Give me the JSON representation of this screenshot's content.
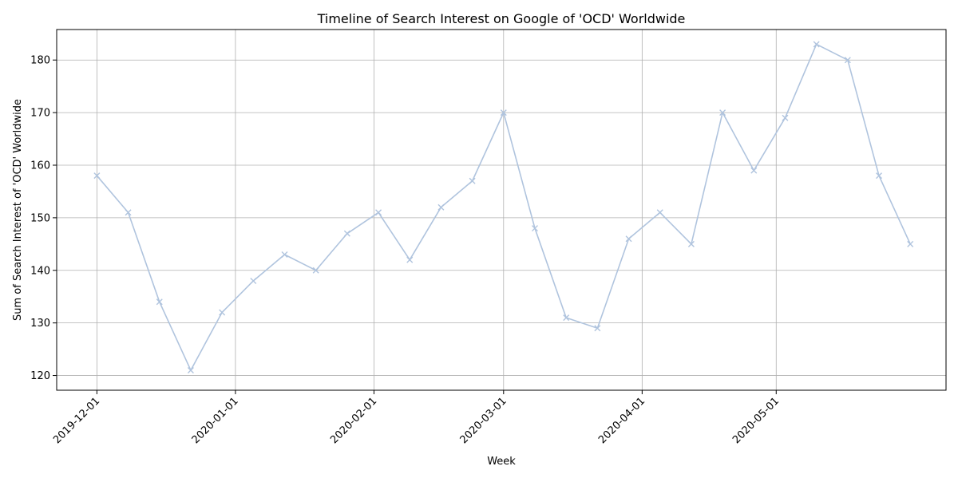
{
  "chart_data": {
    "type": "line",
    "title": "Timeline of Search Interest on Google of 'OCD' Worldwide",
    "xlabel": "Week",
    "ylabel": "Sum of Search Interest of 'OCD' Worldwide",
    "x_tick_labels": [
      "2019-12-01",
      "2020-01-01",
      "2020-02-01",
      "2020-03-01",
      "2020-04-01",
      "2020-05-01"
    ],
    "y_ticks": [
      120,
      130,
      140,
      150,
      160,
      170,
      180
    ],
    "ylim": [
      117.2,
      185.8
    ],
    "xlim": [
      "2019-11-22",
      "2020-06-08"
    ],
    "grid": true,
    "marker": "x",
    "line_color": "#b0c4de",
    "series": [
      {
        "x": [
          "2019-12-01",
          "2019-12-08",
          "2019-12-15",
          "2019-12-22",
          "2019-12-29",
          "2020-01-05",
          "2020-01-12",
          "2020-01-19",
          "2020-01-26",
          "2020-02-02",
          "2020-02-09",
          "2020-02-16",
          "2020-02-23",
          "2020-03-01",
          "2020-03-08",
          "2020-03-15",
          "2020-03-22",
          "2020-03-29",
          "2020-04-05",
          "2020-04-12",
          "2020-04-19",
          "2020-04-26",
          "2020-05-03",
          "2020-05-10",
          "2020-05-17",
          "2020-05-24",
          "2020-05-31"
        ],
        "values": [
          158,
          151,
          134,
          121,
          132,
          138,
          143,
          140,
          147,
          151,
          142,
          152,
          157,
          170,
          148,
          131,
          129,
          146,
          151,
          145,
          170,
          159,
          169,
          183,
          180,
          158,
          145
        ]
      }
    ]
  }
}
